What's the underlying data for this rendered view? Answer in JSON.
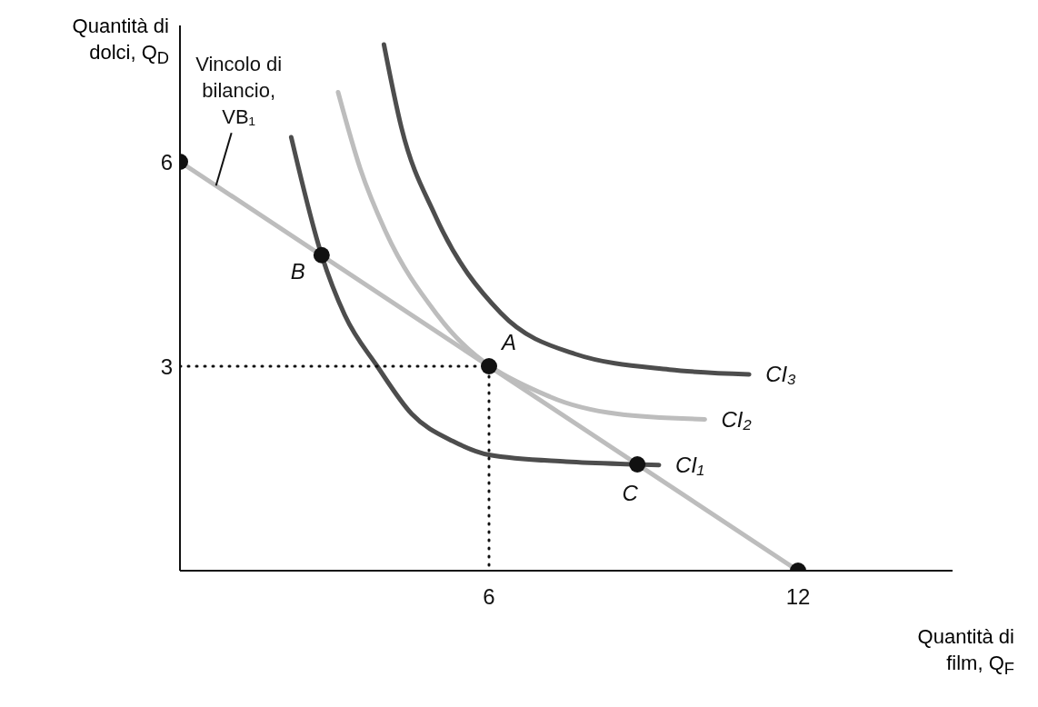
{
  "chart_data": {
    "type": "line",
    "xlabel": "Quantità di film, Q$_{F}$",
    "ylabel": "Quantità di dolci, Q$_{D}$",
    "xlim": [
      0,
      15
    ],
    "ylim": [
      0,
      8
    ],
    "xticks": [
      6,
      12
    ],
    "yticks": [
      3,
      6
    ],
    "series": [
      {
        "color": "#bdbdbd",
        "line_style": "solid",
        "marker": "none",
        "x": [
          0,
          12
        ],
        "values": [
          6,
          0
        ]
      },
      {
        "name": "CI₁",
        "color": "#4d4d4d",
        "line_style": "solid",
        "marker": "none",
        "x": [
          2.16,
          2.75,
          3.2,
          3.83,
          4.5,
          5.3,
          6,
          7.5,
          8.88,
          9.3
        ],
        "values": [
          6.36,
          4.63,
          3.75,
          3,
          2.3,
          1.9,
          1.7,
          1.6,
          1.56,
          1.55
        ]
      },
      {
        "name": "CI₂",
        "color": "#bdbdbd",
        "line_style": "solid",
        "marker": "none",
        "x": [
          3.07,
          3.5,
          3.99,
          5,
          7.19,
          8.5,
          10.19
        ],
        "values": [
          7.02,
          5.9,
          4.98,
          3.75,
          2.55,
          2.3,
          2.22
        ]
      },
      {
        "name": "CI₃",
        "color": "#4d4d4d",
        "line_style": "solid",
        "marker": "none",
        "x": [
          3.96,
          4.3,
          4.95,
          6.23,
          7.67,
          9.5,
          11.05
        ],
        "values": [
          7.72,
          6.5,
          5.22,
          3.78,
          3.18,
          2.95,
          2.88
        ]
      },
      {
        "color": "#111111",
        "line_style": "dotted",
        "marker": "none",
        "x": [
          0,
          6,
          6
        ],
        "values": [
          3,
          3,
          0
        ]
      },
      {
        "type": "scatter",
        "color": "#111111",
        "marker": "circle",
        "x": [
          0,
          2.75,
          6,
          8.88,
          12
        ],
        "values": [
          6,
          4.63,
          3,
          1.56,
          0
        ]
      }
    ],
    "annotations": [
      {
        "text": "Vincolo di bilancio, VB₁",
        "x": 0.7,
        "y": 5.65
      },
      {
        "text": "A",
        "x": 6,
        "y": 3
      },
      {
        "text": "B",
        "x": 2.75,
        "y": 4.63
      },
      {
        "text": "C",
        "x": 8.88,
        "y": 1.56
      }
    ]
  }
}
